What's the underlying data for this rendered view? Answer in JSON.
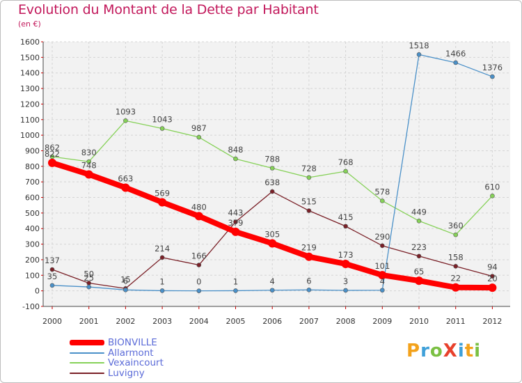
{
  "header": {
    "title": "Evolution du Montant de la Dette par Habitant",
    "subtitle": "(en €)"
  },
  "chart_data": {
    "type": "line",
    "title": "Evolution du Montant de la Dette par Habitant",
    "subtitle": "(en €)",
    "xlabel": "",
    "ylabel": "",
    "x": [
      2000,
      2001,
      2002,
      2003,
      2004,
      2005,
      2006,
      2007,
      2008,
      2009,
      2010,
      2011,
      2012
    ],
    "ylim": [
      -100,
      1600
    ],
    "yticks": [
      -100,
      0,
      100,
      200,
      300,
      400,
      500,
      600,
      700,
      800,
      900,
      1000,
      1100,
      1200,
      1300,
      1400,
      1500,
      1600
    ],
    "grid": true,
    "legend_position": "bottom-left",
    "series": [
      {
        "name": "BIONVILLE",
        "color": "#ff0000",
        "values": [
          822,
          748,
          663,
          569,
          480,
          379,
          305,
          219,
          173,
          101,
          65,
          22,
          20
        ]
      },
      {
        "name": "Allarmont",
        "color": "#4a90c8",
        "values": [
          35,
          25,
          6,
          1,
          0,
          1,
          4,
          6,
          3,
          4,
          1518,
          1466,
          1376
        ]
      },
      {
        "name": "Vexaincourt",
        "color": "#86d158",
        "values": [
          862,
          830,
          1093,
          1043,
          987,
          848,
          788,
          728,
          768,
          578,
          449,
          360,
          610
        ]
      },
      {
        "name": "Luvigny",
        "color": "#7a2027",
        "values": [
          137,
          50,
          15,
          214,
          166,
          443,
          638,
          515,
          415,
          290,
          223,
          158,
          94
        ]
      }
    ]
  },
  "legend": {
    "items": [
      {
        "label": "BIONVILLE",
        "color": "#ff0000"
      },
      {
        "label": "Allarmont",
        "color": "#4a90c8"
      },
      {
        "label": "Vexaincourt",
        "color": "#86d158"
      },
      {
        "label": "Luvigny",
        "color": "#7a2027"
      }
    ]
  },
  "logo": {
    "letters": [
      {
        "char": "P",
        "color": "#f3a21b"
      },
      {
        "char": "r",
        "color": "#3fa0d9"
      },
      {
        "char": "o",
        "color": "#7bc043"
      },
      {
        "char": "X",
        "color": "#e8412c"
      },
      {
        "char": "i",
        "color": "#3fa0d9"
      },
      {
        "char": "t",
        "color": "#f3a21b"
      },
      {
        "char": "i",
        "color": "#7bc043"
      }
    ]
  }
}
